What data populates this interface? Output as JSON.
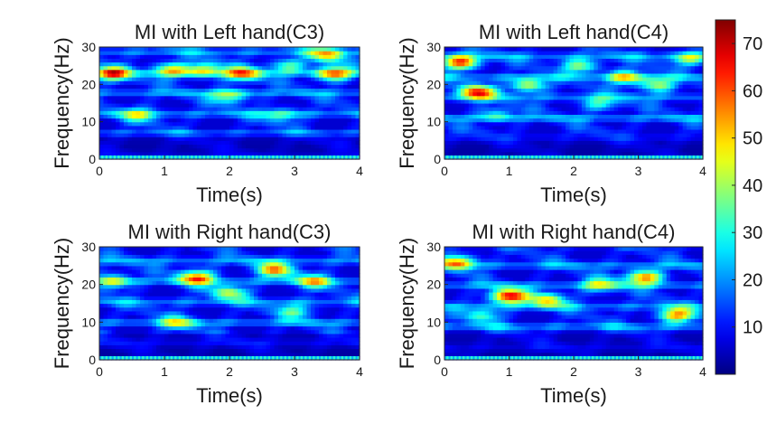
{
  "chart_data": {
    "type": "heatmap",
    "panels": [
      {
        "title": "MI with Left hand(C3)",
        "xlabel": "Time(s)",
        "ylabel": "Frequency(Hz)",
        "xlim": [
          0,
          4
        ],
        "ylim": [
          0,
          30
        ],
        "xticks": [
          "0",
          "1",
          "2",
          "3",
          "4"
        ],
        "yticks": [
          "0",
          "10",
          "20",
          "30"
        ],
        "hotspots": [
          {
            "t": 0.2,
            "f": 23,
            "v": 58
          },
          {
            "t": 1.1,
            "f": 24,
            "v": 45
          },
          {
            "t": 1.6,
            "f": 24,
            "v": 44
          },
          {
            "t": 2.2,
            "f": 23,
            "v": 52
          },
          {
            "t": 2.9,
            "f": 25,
            "v": 35
          },
          {
            "t": 3.6,
            "f": 23,
            "v": 55
          },
          {
            "t": 3.5,
            "f": 28,
            "v": 45
          },
          {
            "t": 2.0,
            "f": 17,
            "v": 38
          },
          {
            "t": 0.6,
            "f": 12,
            "v": 35
          },
          {
            "t": 2.8,
            "f": 12,
            "v": 30
          }
        ]
      },
      {
        "title": "MI with Left hand(C4)",
        "xlabel": "Time(s)",
        "ylabel": "Frequency(Hz)",
        "xlim": [
          0,
          4
        ],
        "ylim": [
          0,
          30
        ],
        "xticks": [
          "0",
          "1",
          "2",
          "3",
          "4"
        ],
        "yticks": [
          "0",
          "10",
          "20",
          "30"
        ],
        "hotspots": [
          {
            "t": 0.25,
            "f": 26,
            "v": 62
          },
          {
            "t": 0.5,
            "f": 18,
            "v": 62
          },
          {
            "t": 1.3,
            "f": 20,
            "v": 45
          },
          {
            "t": 2.1,
            "f": 25,
            "v": 40
          },
          {
            "t": 2.8,
            "f": 22,
            "v": 45
          },
          {
            "t": 3.3,
            "f": 20,
            "v": 42
          },
          {
            "t": 3.8,
            "f": 27,
            "v": 38
          },
          {
            "t": 2.4,
            "f": 15,
            "v": 32
          },
          {
            "t": 0.8,
            "f": 12,
            "v": 30
          }
        ]
      },
      {
        "title": "MI with Right hand(C3)",
        "xlabel": "Time(s)",
        "ylabel": "Frequency(Hz)",
        "xlim": [
          0,
          4
        ],
        "ylim": [
          0,
          30
        ],
        "xticks": [
          "0",
          "1",
          "2",
          "3",
          "4"
        ],
        "yticks": [
          "0",
          "10",
          "20",
          "30"
        ],
        "hotspots": [
          {
            "t": 0.2,
            "f": 21,
            "v": 42
          },
          {
            "t": 1.5,
            "f": 22,
            "v": 55
          },
          {
            "t": 2.0,
            "f": 18,
            "v": 40
          },
          {
            "t": 2.7,
            "f": 24,
            "v": 52
          },
          {
            "t": 3.3,
            "f": 21,
            "v": 40
          },
          {
            "t": 1.2,
            "f": 10,
            "v": 35
          },
          {
            "t": 3.0,
            "f": 13,
            "v": 32
          }
        ]
      },
      {
        "title": "MI with Right hand(C4)",
        "xlabel": "Time(s)",
        "ylabel": "Frequency(Hz)",
        "xlim": [
          0,
          4
        ],
        "ylim": [
          0,
          30
        ],
        "xticks": [
          "0",
          "1",
          "2",
          "3",
          "4"
        ],
        "yticks": [
          "0",
          "10",
          "20",
          "30"
        ],
        "hotspots": [
          {
            "t": 0.2,
            "f": 26,
            "v": 52
          },
          {
            "t": 1.0,
            "f": 17,
            "v": 68
          },
          {
            "t": 1.6,
            "f": 16,
            "v": 45
          },
          {
            "t": 3.1,
            "f": 22,
            "v": 58
          },
          {
            "t": 3.6,
            "f": 12,
            "v": 55
          },
          {
            "t": 2.4,
            "f": 20,
            "v": 38
          },
          {
            "t": 0.6,
            "f": 12,
            "v": 32
          }
        ]
      }
    ],
    "colorbar": {
      "colormap": "jet",
      "range": [
        0,
        75
      ],
      "ticks": [
        "10",
        "20",
        "30",
        "40",
        "50",
        "60",
        "70"
      ]
    }
  }
}
